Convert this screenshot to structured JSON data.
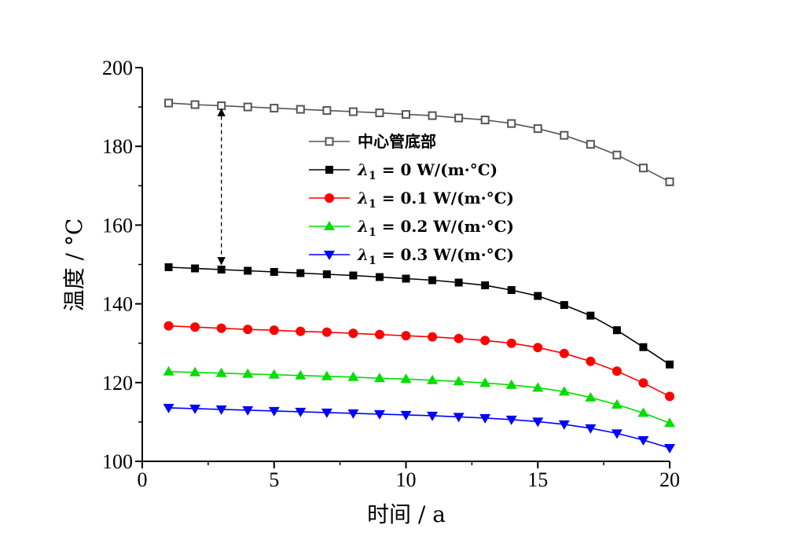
{
  "chart_data": {
    "type": "line",
    "xlabel": "时间 / a",
    "ylabel": "温度 / °C",
    "xlim": [
      0,
      20
    ],
    "ylim": [
      100,
      200
    ],
    "xticks": [
      "0",
      "5",
      "10",
      "15",
      "20"
    ],
    "yticks": [
      "100",
      "120",
      "140",
      "160",
      "180",
      "200"
    ],
    "grid": false,
    "legend_position": "center-right",
    "x": [
      1,
      2,
      3,
      4,
      5,
      6,
      7,
      8,
      9,
      10,
      11,
      12,
      13,
      14,
      15,
      16,
      17,
      18,
      19,
      20
    ],
    "series": [
      {
        "name": "中心管底部",
        "color": "#555555",
        "marker": "open-square",
        "values": [
          191.0,
          190.6,
          190.3,
          190.0,
          189.7,
          189.4,
          189.1,
          188.8,
          188.5,
          188.1,
          187.8,
          187.2,
          186.7,
          185.8,
          184.5,
          182.8,
          180.5,
          177.8,
          174.5,
          171.0
        ]
      },
      {
        "name_prefix": "λ",
        "name_sub": "1",
        "name_suffix": " = 0 W/(m·°C)",
        "color": "#000000",
        "marker": "square",
        "values": [
          149.3,
          149.0,
          148.7,
          148.4,
          148.1,
          147.8,
          147.5,
          147.2,
          146.8,
          146.4,
          146.0,
          145.4,
          144.7,
          143.5,
          142.0,
          139.7,
          137.0,
          133.3,
          129.0,
          124.6
        ]
      },
      {
        "name_prefix": "λ",
        "name_sub": "1",
        "name_suffix": " = 0.1 W/(m·°C)",
        "color": "#ff0000",
        "marker": "circle",
        "values": [
          134.4,
          134.1,
          133.8,
          133.5,
          133.3,
          133.0,
          132.8,
          132.5,
          132.2,
          131.9,
          131.6,
          131.2,
          130.7,
          130.0,
          128.9,
          127.4,
          125.4,
          122.9,
          119.9,
          116.5
        ]
      },
      {
        "name_prefix": "λ",
        "name_sub": "1",
        "name_suffix": " = 0.2 W/(m·°C)",
        "color": "#00dd00",
        "marker": "triangle-up",
        "values": [
          122.8,
          122.6,
          122.4,
          122.2,
          122.0,
          121.8,
          121.6,
          121.4,
          121.1,
          120.9,
          120.6,
          120.3,
          119.9,
          119.4,
          118.7,
          117.7,
          116.2,
          114.4,
          112.3,
          109.7
        ]
      },
      {
        "name_prefix": "λ",
        "name_sub": "1",
        "name_suffix": " = 0.3 W/(m·°C)",
        "color": "#0000ff",
        "marker": "triangle-down",
        "values": [
          113.6,
          113.4,
          113.2,
          113.0,
          112.8,
          112.6,
          112.4,
          112.2,
          112.0,
          111.8,
          111.6,
          111.3,
          111.0,
          110.6,
          110.1,
          109.4,
          108.4,
          107.1,
          105.4,
          103.4
        ]
      }
    ],
    "annotation": {
      "type": "double-arrow",
      "x": 3,
      "y_from": 189.5,
      "y_to": 150.0,
      "style": "dashed"
    }
  }
}
